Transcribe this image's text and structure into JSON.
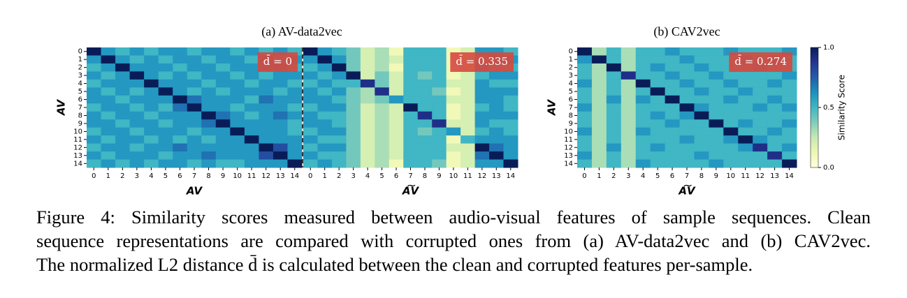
{
  "chart_data": [
    {
      "type": "heatmap",
      "title": "(a) AV-data2vec",
      "ylabel": "AV",
      "xlabel": "AV",
      "annotation": "d̄ = 0",
      "colormap": "YlGnBu",
      "zlim": [
        0,
        1
      ],
      "categories": [
        "0",
        "1",
        "2",
        "3",
        "4",
        "5",
        "6",
        "7",
        "8",
        "9",
        "10",
        "11",
        "12",
        "13",
        "14"
      ],
      "values": [
        [
          1,
          0.6,
          0.5,
          0.6,
          0.5,
          0.6,
          0.6,
          0.5,
          0.6,
          0.6,
          0.5,
          0.6,
          0.5,
          0.6,
          0.5
        ],
        [
          0.6,
          1,
          0.6,
          0.5,
          0.6,
          0.5,
          0.6,
          0.6,
          0.5,
          0.6,
          0.6,
          0.5,
          0.6,
          0.5,
          0.6
        ],
        [
          0.5,
          0.6,
          1,
          0.6,
          0.6,
          0.6,
          0.5,
          0.6,
          0.6,
          0.5,
          0.6,
          0.6,
          0.6,
          0.6,
          0.5
        ],
        [
          0.6,
          0.5,
          0.6,
          1,
          0.6,
          0.5,
          0.6,
          0.5,
          0.6,
          0.6,
          0.5,
          0.6,
          0.5,
          0.6,
          0.6
        ],
        [
          0.5,
          0.6,
          0.6,
          0.6,
          1,
          0.6,
          0.6,
          0.6,
          0.5,
          0.6,
          0.6,
          0.5,
          0.6,
          0.6,
          0.5
        ],
        [
          0.6,
          0.5,
          0.6,
          0.5,
          0.6,
          1,
          0.6,
          0.5,
          0.6,
          0.5,
          0.6,
          0.6,
          0.6,
          0.5,
          0.6
        ],
        [
          0.6,
          0.6,
          0.5,
          0.6,
          0.6,
          0.6,
          1,
          0.7,
          0.6,
          0.6,
          0.6,
          0.5,
          0.7,
          0.6,
          0.6
        ],
        [
          0.5,
          0.6,
          0.6,
          0.5,
          0.6,
          0.5,
          0.7,
          1,
          0.6,
          0.6,
          0.5,
          0.6,
          0.6,
          0.6,
          0.5
        ],
        [
          0.6,
          0.5,
          0.6,
          0.6,
          0.5,
          0.6,
          0.6,
          0.6,
          1,
          0.7,
          0.6,
          0.5,
          0.6,
          0.7,
          0.6
        ],
        [
          0.6,
          0.6,
          0.5,
          0.6,
          0.6,
          0.5,
          0.6,
          0.6,
          0.7,
          1,
          0.6,
          0.6,
          0.6,
          0.6,
          0.5
        ],
        [
          0.5,
          0.6,
          0.6,
          0.5,
          0.6,
          0.6,
          0.6,
          0.5,
          0.6,
          0.6,
          1,
          0.6,
          0.6,
          0.6,
          0.5
        ],
        [
          0.6,
          0.5,
          0.6,
          0.6,
          0.5,
          0.6,
          0.5,
          0.6,
          0.5,
          0.6,
          0.6,
          1,
          0.6,
          0.6,
          0.6
        ],
        [
          0.5,
          0.6,
          0.6,
          0.5,
          0.6,
          0.6,
          0.7,
          0.6,
          0.6,
          0.6,
          0.6,
          0.6,
          1,
          0.8,
          0.6
        ],
        [
          0.6,
          0.5,
          0.6,
          0.6,
          0.6,
          0.5,
          0.6,
          0.6,
          0.7,
          0.6,
          0.6,
          0.6,
          0.8,
          1,
          0.6
        ],
        [
          0.5,
          0.6,
          0.5,
          0.6,
          0.5,
          0.6,
          0.6,
          0.5,
          0.6,
          0.5,
          0.5,
          0.6,
          0.6,
          0.6,
          1
        ]
      ]
    },
    {
      "type": "heatmap",
      "xlabel": "A͠V",
      "annotation": "d̄ = 0.335",
      "colormap": "YlGnBu",
      "zlim": [
        0,
        1
      ],
      "categories": [
        "0",
        "1",
        "2",
        "3",
        "4",
        "5",
        "6",
        "7",
        "8",
        "9",
        "10",
        "11",
        "12",
        "13",
        "14"
      ],
      "values": [
        [
          1,
          0.6,
          0.5,
          0.4,
          0.2,
          0.3,
          0.1,
          0.5,
          0.5,
          0.5,
          0.1,
          0.2,
          0.6,
          0.6,
          0.5
        ],
        [
          0.6,
          1,
          0.6,
          0.4,
          0.2,
          0.3,
          0.2,
          0.5,
          0.5,
          0.5,
          0.1,
          0.2,
          0.5,
          0.6,
          0.6
        ],
        [
          0.5,
          0.6,
          1,
          0.4,
          0.2,
          0.3,
          0.1,
          0.5,
          0.5,
          0.5,
          0.1,
          0.2,
          0.6,
          0.5,
          0.5
        ],
        [
          0.6,
          0.5,
          0.6,
          1,
          0.2,
          0.4,
          0.2,
          0.5,
          0.4,
          0.5,
          0.1,
          0.2,
          0.5,
          0.6,
          0.6
        ],
        [
          0.5,
          0.6,
          0.5,
          0.5,
          0.9,
          0.4,
          0.2,
          0.5,
          0.5,
          0.5,
          0.2,
          0.2,
          0.6,
          0.5,
          0.5
        ],
        [
          0.6,
          0.5,
          0.6,
          0.4,
          0.3,
          0.9,
          0.2,
          0.5,
          0.5,
          0.4,
          0.1,
          0.2,
          0.6,
          0.6,
          0.6
        ],
        [
          0.6,
          0.6,
          0.5,
          0.4,
          0.3,
          0.4,
          0.6,
          0.5,
          0.5,
          0.5,
          0.2,
          0.2,
          0.6,
          0.6,
          0.5
        ],
        [
          0.5,
          0.6,
          0.6,
          0.4,
          0.2,
          0.3,
          0.2,
          1,
          0.5,
          0.5,
          0.1,
          0.2,
          0.5,
          0.6,
          0.5
        ],
        [
          0.6,
          0.5,
          0.5,
          0.4,
          0.2,
          0.3,
          0.2,
          0.5,
          0.9,
          0.5,
          0.1,
          0.2,
          0.6,
          0.6,
          0.6
        ],
        [
          0.6,
          0.6,
          0.5,
          0.4,
          0.2,
          0.3,
          0.2,
          0.5,
          0.5,
          0.9,
          0.2,
          0.2,
          0.6,
          0.5,
          0.5
        ],
        [
          0.5,
          0.6,
          0.6,
          0.4,
          0.2,
          0.3,
          0.2,
          0.5,
          0.4,
          0.5,
          0.6,
          0.2,
          0.5,
          0.6,
          0.5
        ],
        [
          0.6,
          0.5,
          0.5,
          0.4,
          0.2,
          0.3,
          0.2,
          0.5,
          0.5,
          0.5,
          0.1,
          0.5,
          0.6,
          0.6,
          0.6
        ],
        [
          0.5,
          0.6,
          0.6,
          0.4,
          0.2,
          0.3,
          0.2,
          0.5,
          0.5,
          0.5,
          0.2,
          0.2,
          1,
          0.7,
          0.6
        ],
        [
          0.6,
          0.5,
          0.5,
          0.4,
          0.2,
          0.3,
          0.2,
          0.5,
          0.5,
          0.5,
          0.1,
          0.2,
          0.7,
          1,
          0.6
        ],
        [
          0.5,
          0.6,
          0.5,
          0.4,
          0.2,
          0.3,
          0.1,
          0.5,
          0.5,
          0.4,
          0.1,
          0.2,
          0.6,
          0.6,
          1
        ]
      ]
    },
    {
      "type": "heatmap",
      "title": "(b) CAV2vec",
      "ylabel": "AV",
      "xlabel": "A͠V",
      "annotation": "d̄ = 0.274",
      "colormap": "YlGnBu",
      "zlim": [
        0,
        1
      ],
      "categories": [
        "0",
        "1",
        "2",
        "3",
        "4",
        "5",
        "6",
        "7",
        "8",
        "9",
        "10",
        "11",
        "12",
        "13",
        "14"
      ],
      "values": [
        [
          1,
          0.3,
          0.5,
          0.3,
          0.5,
          0.5,
          0.6,
          0.5,
          0.5,
          0.5,
          0.6,
          0.5,
          0.5,
          0.5,
          0.6
        ],
        [
          0.6,
          1,
          0.5,
          0.3,
          0.5,
          0.5,
          0.5,
          0.6,
          0.5,
          0.5,
          0.5,
          0.6,
          0.5,
          0.6,
          0.5
        ],
        [
          0.5,
          0.3,
          1,
          0.3,
          0.5,
          0.6,
          0.5,
          0.5,
          0.6,
          0.5,
          0.5,
          0.5,
          0.6,
          0.5,
          0.5
        ],
        [
          0.5,
          0.3,
          0.5,
          0.9,
          0.5,
          0.5,
          0.6,
          0.5,
          0.5,
          0.6,
          0.5,
          0.5,
          0.5,
          0.5,
          0.6
        ],
        [
          0.6,
          0.3,
          0.5,
          0.3,
          1,
          0.5,
          0.5,
          0.6,
          0.5,
          0.5,
          0.6,
          0.5,
          0.5,
          0.6,
          0.5
        ],
        [
          0.5,
          0.3,
          0.5,
          0.3,
          0.5,
          1,
          0.5,
          0.5,
          0.6,
          0.5,
          0.5,
          0.6,
          0.5,
          0.5,
          0.5
        ],
        [
          0.5,
          0.3,
          0.6,
          0.3,
          0.6,
          0.5,
          1,
          0.5,
          0.5,
          0.5,
          0.6,
          0.5,
          0.5,
          0.6,
          0.5
        ],
        [
          0.6,
          0.3,
          0.5,
          0.3,
          0.5,
          0.5,
          0.5,
          1,
          0.6,
          0.5,
          0.5,
          0.5,
          0.6,
          0.5,
          0.6
        ],
        [
          0.5,
          0.3,
          0.5,
          0.3,
          0.5,
          0.6,
          0.5,
          0.6,
          1,
          0.5,
          0.5,
          0.5,
          0.5,
          0.5,
          0.5
        ],
        [
          0.5,
          0.3,
          0.5,
          0.3,
          0.5,
          0.5,
          0.6,
          0.5,
          0.5,
          1,
          0.5,
          0.6,
          0.5,
          0.5,
          0.6
        ],
        [
          0.6,
          0.3,
          0.5,
          0.3,
          0.6,
          0.5,
          0.5,
          0.5,
          0.5,
          0.5,
          1,
          0.5,
          0.5,
          0.6,
          0.5
        ],
        [
          0.5,
          0.3,
          0.5,
          0.3,
          0.5,
          0.5,
          0.5,
          0.6,
          0.5,
          0.5,
          0.6,
          1,
          0.6,
          0.5,
          0.5
        ],
        [
          0.5,
          0.3,
          0.6,
          0.3,
          0.5,
          0.6,
          0.5,
          0.5,
          0.5,
          0.5,
          0.5,
          0.6,
          0.9,
          0.5,
          0.6
        ],
        [
          0.6,
          0.3,
          0.5,
          0.3,
          0.5,
          0.5,
          0.5,
          0.5,
          0.6,
          0.5,
          0.5,
          0.5,
          0.5,
          0.9,
          0.5
        ],
        [
          0.5,
          0.3,
          0.5,
          0.3,
          0.6,
          0.5,
          0.5,
          0.5,
          0.5,
          0.6,
          0.5,
          0.5,
          0.5,
          0.5,
          1
        ]
      ],
      "colorbar": {
        "label": "Similarity Score",
        "ticks": [
          {
            "value": 0,
            "label": "0.0"
          },
          0.5,
          {
            "value": 1,
            "label": "1.0"
          }
        ]
      }
    }
  ],
  "figure": {
    "caption": [
      "Figure 4: Similarity scores measured between audio-visual features of sample sequences. Clean",
      "sequence representations are compared with corrupted ones from (a) AV-data2vec and (b) CAV2vec.",
      "The normalized L2 distance d̄ is calculated between the clean and corrupted features per-sample."
    ]
  }
}
